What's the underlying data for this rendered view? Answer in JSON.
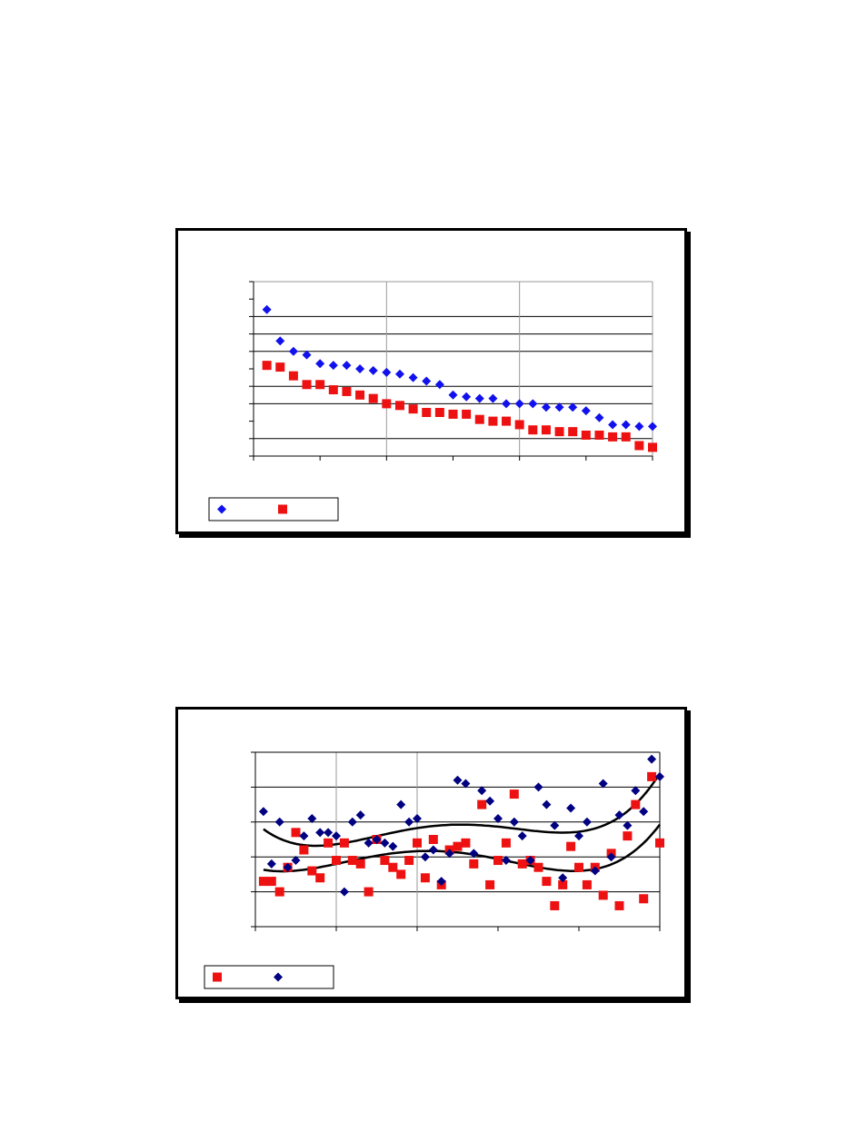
{
  "colors": {
    "series_blue": "#1111ee",
    "series_red": "#ee1111",
    "series_navy": "#000080",
    "trend": "#000000",
    "grid": "#000000",
    "frame": "#000000"
  },
  "chart_data": [
    {
      "type": "scatter",
      "title": "",
      "xlabel": "",
      "ylabel": "",
      "xlim": [
        0,
        30
      ],
      "ylim": [
        0,
        10
      ],
      "x_gridlines": [
        10,
        20
      ],
      "y_gridlines": [
        1,
        3,
        4,
        6,
        7,
        8
      ],
      "x_tick_count": 7,
      "y_tick_count": 11,
      "legend_placement": "bottom-left",
      "series": [
        {
          "marker": "diamond",
          "color": "#1111ee",
          "x": [
            1,
            2,
            3,
            4,
            5,
            6,
            7,
            8,
            9,
            10,
            11,
            12,
            13,
            14,
            15,
            16,
            17,
            18,
            19,
            20,
            21,
            22,
            23,
            24,
            25,
            26,
            27,
            28,
            29,
            30
          ],
          "values": [
            8.4,
            6.6,
            6.0,
            5.8,
            5.3,
            5.2,
            5.2,
            5.0,
            4.9,
            4.8,
            4.7,
            4.5,
            4.3,
            4.1,
            3.5,
            3.4,
            3.3,
            3.3,
            3.0,
            3.0,
            3.0,
            2.8,
            2.8,
            2.8,
            2.6,
            2.2,
            1.8,
            1.8,
            1.7,
            1.7
          ]
        },
        {
          "marker": "square",
          "color": "#ee1111",
          "x": [
            1,
            2,
            3,
            4,
            5,
            6,
            7,
            8,
            9,
            10,
            11,
            12,
            13,
            14,
            15,
            16,
            17,
            18,
            19,
            20,
            21,
            22,
            23,
            24,
            25,
            26,
            27,
            28,
            29,
            30
          ],
          "values": [
            5.2,
            5.1,
            4.6,
            4.1,
            4.1,
            3.8,
            3.7,
            3.5,
            3.3,
            3.0,
            2.9,
            2.7,
            2.5,
            2.5,
            2.4,
            2.4,
            2.1,
            2.0,
            2.0,
            1.8,
            1.5,
            1.5,
            1.4,
            1.4,
            1.2,
            1.2,
            1.1,
            1.1,
            0.6,
            0.5
          ]
        }
      ]
    },
    {
      "type": "scatter",
      "title": "",
      "xlabel": "",
      "ylabel": "",
      "xlim": [
        0,
        50
      ],
      "ylim": [
        0,
        5
      ],
      "x_gridlines": [
        10,
        20
      ],
      "y_gridlines": [
        1,
        2,
        3,
        4
      ],
      "x_tick_count": 6,
      "y_tick_count": 6,
      "legend_placement": "bottom-left",
      "series": [
        {
          "marker": "square",
          "color": "#ee1111",
          "x": [
            1,
            2,
            3,
            4,
            5,
            6,
            7,
            8,
            9,
            10,
            11,
            12,
            13,
            14,
            15,
            16,
            17,
            18,
            19,
            20,
            21,
            22,
            23,
            24,
            25,
            26,
            27,
            28,
            29,
            30,
            31,
            32,
            33,
            34,
            35,
            36,
            37,
            38,
            39,
            40,
            41,
            42,
            43,
            44,
            45,
            46,
            47,
            48,
            49,
            50
          ],
          "values": [
            1.3,
            1.3,
            1.0,
            1.7,
            2.7,
            2.2,
            1.6,
            1.4,
            2.4,
            1.9,
            2.4,
            1.9,
            1.8,
            1.0,
            2.5,
            1.9,
            1.7,
            1.5,
            1.9,
            2.4,
            1.4,
            2.5,
            1.2,
            2.2,
            2.3,
            2.4,
            1.8,
            3.5,
            1.2,
            1.9,
            2.4,
            3.8,
            1.8,
            1.9,
            1.7,
            1.3,
            0.6,
            1.2,
            2.3,
            1.7,
            1.2,
            1.7,
            0.9,
            2.1,
            0.6,
            2.6,
            3.5,
            0.8,
            4.3,
            2.4
          ]
        },
        {
          "marker": "diamond",
          "color": "#000080",
          "x": [
            1,
            2,
            3,
            4,
            5,
            6,
            7,
            8,
            9,
            10,
            11,
            12,
            13,
            14,
            15,
            16,
            17,
            18,
            19,
            20,
            21,
            22,
            23,
            24,
            25,
            26,
            27,
            28,
            29,
            30,
            31,
            32,
            33,
            34,
            35,
            36,
            37,
            38,
            39,
            40,
            41,
            42,
            43,
            44,
            45,
            46,
            47,
            48,
            49,
            50
          ],
          "values": [
            3.3,
            1.8,
            3.0,
            1.7,
            1.9,
            2.6,
            3.1,
            2.7,
            2.7,
            2.6,
            1.0,
            3.0,
            3.2,
            2.4,
            2.5,
            2.4,
            2.3,
            3.5,
            3.0,
            3.1,
            2.0,
            2.2,
            1.3,
            2.1,
            4.2,
            4.1,
            2.1,
            3.9,
            3.6,
            3.1,
            1.9,
            3.0,
            2.6,
            1.9,
            4.0,
            3.5,
            2.9,
            1.4,
            3.4,
            2.6,
            3.0,
            1.6,
            4.1,
            2.0,
            3.2,
            2.9,
            3.9,
            3.3,
            4.8,
            4.3
          ]
        }
      ]
    }
  ]
}
